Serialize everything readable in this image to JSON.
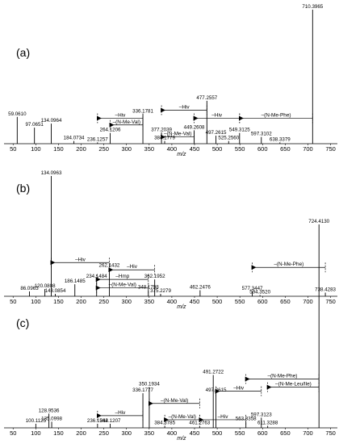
{
  "chart_data": [
    {
      "type": "stem",
      "label": "(a)",
      "xlabel": "m/z",
      "xlim": [
        30,
        765
      ],
      "ylim": [
        0,
        100
      ],
      "xticks": [
        50,
        100,
        150,
        200,
        250,
        300,
        350,
        400,
        450,
        500,
        550,
        600,
        650,
        700,
        750
      ],
      "color": "#000000",
      "x": [
        {
          "value": 59.061,
          "label": "59.0610"
        },
        {
          "value": 97.0651,
          "label": "97.0651"
        },
        {
          "value": 134.0964,
          "label": "134.0964"
        },
        {
          "value": 184.0734,
          "label": "184.0734"
        },
        {
          "value": 236.1257,
          "label": "236.1257"
        },
        {
          "value": 264.1206,
          "label": "264.1206"
        },
        {
          "value": 336.1781,
          "label": "336.1781"
        },
        {
          "value": 377.2039,
          "label": "377.2039"
        },
        {
          "value": 384.1779,
          "label": "384.1779"
        },
        {
          "value": 449.2608,
          "label": "449.2608"
        },
        {
          "value": 477.2557,
          "label": "477.2557"
        },
        {
          "value": 497.2615,
          "label": "497.2615"
        },
        {
          "value": 525.256,
          "label": "525.2560"
        },
        {
          "value": 549.3125,
          "label": "549.3125"
        },
        {
          "value": 597.3102,
          "label": "597.3102"
        },
        {
          "value": 638.3379,
          "label": "638.3379"
        },
        {
          "value": 710.3965,
          "label": "710.3965"
        }
      ],
      "values": [
        20,
        12,
        15,
        2,
        1,
        8,
        22,
        8,
        2,
        10,
        32,
        6,
        2,
        8,
        5,
        1,
        100
      ],
      "annotations": [
        {
          "text": "–Hiv",
          "from": 336.1781,
          "to": 236.1257,
          "y": 19
        },
        {
          "text": "–(N-Me-Val)",
          "from": 336.1781,
          "to": 264.1206,
          "y": 14
        },
        {
          "text": "–Hiv",
          "from": 477.2557,
          "to": 377.2039,
          "y": 25
        },
        {
          "text": "–(N-Me-Val)",
          "from": 449.2608,
          "to": 377.2039,
          "y": 5
        },
        {
          "text": "–Hiv",
          "from": 549.3125,
          "to": 449.2608,
          "y": 19
        },
        {
          "text": "–(N-Me-Phe)",
          "from": 710.3965,
          "to": 549.3125,
          "y": 19
        }
      ]
    },
    {
      "type": "stem",
      "label": "(b)",
      "xlabel": "m/z",
      "xlim": [
        30,
        765
      ],
      "ylim": [
        0,
        100
      ],
      "xticks": [
        50,
        100,
        150,
        200,
        250,
        300,
        350,
        400,
        450,
        500,
        550,
        600,
        650,
        700,
        750
      ],
      "color": "#000000",
      "x": [
        {
          "value": 86.0963,
          "label": "86.0963"
        },
        {
          "value": 120.0808,
          "label": "120.0808"
        },
        {
          "value": 134.0963,
          "label": "134.0963"
        },
        {
          "value": 143.0854,
          "label": "143.0854"
        },
        {
          "value": 186.1485,
          "label": "186.1485"
        },
        {
          "value": 234.1484,
          "label": "234.1484"
        },
        {
          "value": 262.1432,
          "label": "262.1432"
        },
        {
          "value": 348.1798,
          "label": "348.1798"
        },
        {
          "value": 362.1952,
          "label": "362.1952"
        },
        {
          "value": 375.2279,
          "label": "375.2279"
        },
        {
          "value": 462.2476,
          "label": "462.2476"
        },
        {
          "value": 577.3447,
          "label": "577.3447"
        },
        {
          "value": 594.352,
          "label": "594.3520"
        },
        {
          "value": 738.4283,
          "label": "738.4283"
        }
      ],
      "values": [
        4,
        6,
        100,
        2,
        10,
        14,
        23,
        5,
        14,
        2,
        5,
        4,
        1,
        3
      ],
      "annotations": [
        {
          "text": "–Hiv",
          "from": 262.1432,
          "to": 134.0963,
          "y": 28
        },
        {
          "text": "–Hiv",
          "from": 362.1952,
          "to": 262.1432,
          "y": 22
        },
        {
          "text": "–Hmp",
          "from": 348.1798,
          "to": 234.1484,
          "y": 14
        },
        {
          "text": "–(N-Me-Val)",
          "from": 348.1798,
          "to": 234.1484,
          "y": 7
        },
        {
          "text": "–(N-Me-Phe)",
          "from": 738.4283,
          "to": 577.3447,
          "y": 24
        }
      ]
    },
    {
      "type": "stem",
      "label": "(c)",
      "xlabel": "m/z",
      "xlim": [
        30,
        765
      ],
      "ylim": [
        0,
        100
      ],
      "xticks": [
        50,
        100,
        150,
        200,
        250,
        300,
        350,
        400,
        450,
        500,
        550,
        600,
        650,
        700,
        750
      ],
      "color": "#000000",
      "x": [
        {
          "value": 100.1125,
          "label": "100.1125"
        },
        {
          "value": 128.9536,
          "label": "128.9536"
        },
        {
          "value": 135.0998,
          "label": "135.0998"
        },
        {
          "value": 236.1542,
          "label": "236.1542"
        },
        {
          "value": 264.1207,
          "label": "264.1207"
        },
        {
          "value": 336.1777,
          "label": "336.1777"
        },
        {
          "value": 350.1934,
          "label": "350.1934"
        },
        {
          "value": 384.3785,
          "label": "384.3785"
        },
        {
          "value": 461.2763,
          "label": "461.2763"
        },
        {
          "value": 491.2722,
          "label": "491.2722"
        },
        {
          "value": 497.2615,
          "label": "497.2615"
        },
        {
          "value": 563.3358,
          "label": "563.3358"
        },
        {
          "value": 597.3123,
          "label": "597.3123"
        },
        {
          "value": 611.3288,
          "label": "611.3288"
        },
        {
          "value": 724.413,
          "label": "724.4130"
        }
      ],
      "values": [
        2,
        7,
        3,
        2,
        2,
        17,
        20,
        1,
        1,
        26,
        17,
        3,
        5,
        1,
        100
      ],
      "annotations": [
        {
          "text": "–Hiv",
          "from": 336.1777,
          "to": 236.1542,
          "y": 6
        },
        {
          "text": "–(N-Me-Val)",
          "from": 461.2763,
          "to": 350.1934,
          "y": 12
        },
        {
          "text": "–(N-Me-Val)",
          "from": 461.2763,
          "to": 384.3785,
          "y": 4
        },
        {
          "text": "–Hiv",
          "from": 563.3358,
          "to": 461.2763,
          "y": 4
        },
        {
          "text": "–Hiv",
          "from": 597.3123,
          "to": 497.2615,
          "y": 18
        },
        {
          "text": "–(N-Me-Phe)",
          "from": 724.413,
          "to": 563.3358,
          "y": 24
        },
        {
          "text": "–(N-Me-Leu/Ile)",
          "from": 724.413,
          "to": 611.3288,
          "y": 20
        }
      ]
    }
  ]
}
